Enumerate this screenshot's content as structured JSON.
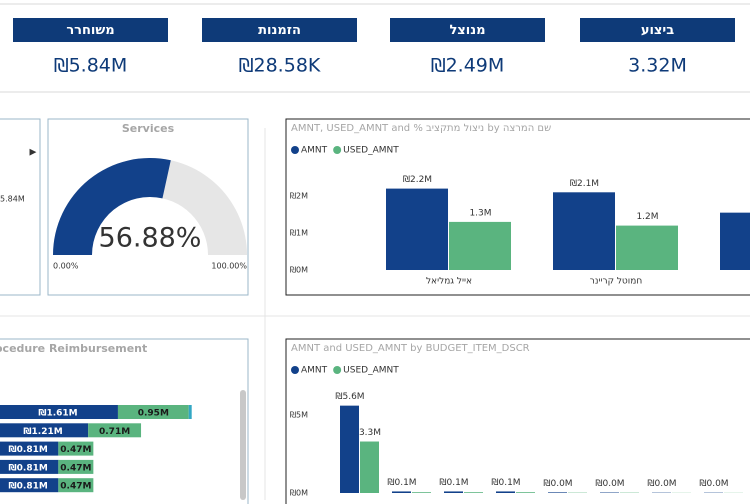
{
  "kpis": [
    {
      "title": "משוחרר",
      "value": "₪5.84M"
    },
    {
      "title": "הזמנות",
      "value": "₪28.58K"
    },
    {
      "title": "מנוצל",
      "value": "₪2.49M"
    },
    {
      "title": "ביצוע",
      "value": "3.32M"
    }
  ],
  "partial_card": {
    "value": "5.84M"
  },
  "chart_data": [
    {
      "type": "gauge",
      "title": "Services",
      "value": 56.88,
      "value_label": "56.88%",
      "min": {
        "value": 0,
        "label": "0.00%"
      },
      "max": {
        "value": 100,
        "label": "100.00%"
      },
      "color": "#12418a",
      "track_color": "#e6e6e6"
    },
    {
      "type": "bar",
      "title": "AMNT, USED_AMNT and % ניצול מתקציב by שם המרצה",
      "categories": [
        "אייל גמליאל",
        "חמוטל קריינר",
        null
      ],
      "series": [
        {
          "name": "AMNT",
          "color": "#12418a",
          "values": [
            2.2,
            2.1,
            1.55
          ],
          "value_labels": [
            "₪2.2M",
            "₪2.1M",
            null
          ]
        },
        {
          "name": "USED_AMNT",
          "color": "#5ab47f",
          "values": [
            1.3,
            1.2,
            null
          ],
          "value_labels": [
            "1.3M",
            "1.2M",
            null
          ]
        }
      ],
      "ylim": [
        0,
        2.4
      ],
      "yticks": [
        {
          "value": 0,
          "label": "₪0M"
        },
        {
          "value": 1,
          "label": "₪1M"
        },
        {
          "value": 2,
          "label": "₪2M"
        }
      ]
    },
    {
      "type": "hbar_stacked",
      "title": "ocedure Reimbursement",
      "categories": [
        null,
        null,
        null,
        null,
        null
      ],
      "series": [
        {
          "color": "#12418a",
          "values": [
            1.61,
            1.21,
            0.81,
            0.81,
            0.81
          ],
          "value_labels": [
            "₪1.61M",
            "₪1.21M",
            "₪0.81M",
            "₪0.81M",
            "₪0.81M"
          ]
        },
        {
          "color": "#5ab47f",
          "values": [
            0.95,
            0.71,
            0.47,
            0.47,
            0.47
          ],
          "value_labels": [
            "0.95M",
            "0.71M",
            "0.47M",
            "0.47M",
            "0.47M"
          ]
        },
        {
          "color": "#33a7c4",
          "values": [
            0.04,
            null,
            null,
            null,
            null
          ]
        }
      ],
      "xlim": [
        0,
        3.4
      ]
    },
    {
      "type": "bar",
      "title": "AMNT and USED_AMNT by BUDGET_ITEM_DSCR",
      "categories": [
        null,
        null,
        null,
        null,
        null,
        null,
        null,
        null
      ],
      "series": [
        {
          "name": "AMNT",
          "color": "#12418a",
          "values": [
            5.6,
            0.1,
            0.1,
            0.1,
            0.04,
            0.03,
            0.02,
            0.02
          ],
          "value_labels": [
            "₪5.6M",
            "₪0.1M",
            "₪0.1M",
            "₪0.1M",
            "₪0.0M",
            "₪0.0M",
            "₪0.0M",
            "₪0.0M"
          ]
        },
        {
          "name": "USED_AMNT",
          "color": "#5ab47f",
          "values": [
            3.3,
            0.05,
            0.05,
            0.05,
            0.02,
            0.02,
            0.01,
            0.01
          ],
          "value_labels": [
            "3.3M",
            null,
            null,
            null,
            null,
            null,
            null,
            null
          ]
        }
      ],
      "ylim": [
        0,
        6
      ],
      "yticks": [
        {
          "value": 0,
          "label": "₪0M"
        },
        {
          "value": 5,
          "label": "₪5M"
        }
      ]
    }
  ]
}
